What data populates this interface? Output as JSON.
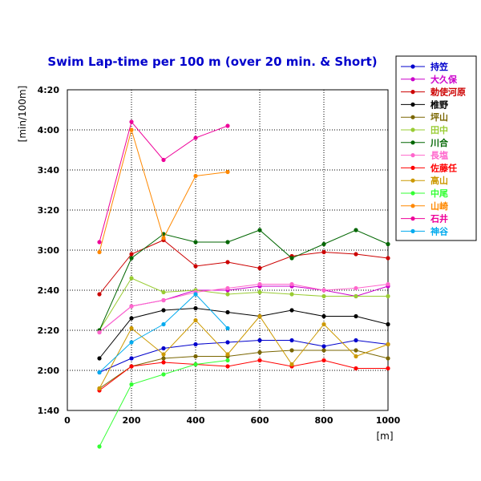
{
  "chart_data": {
    "type": "line",
    "title": "Swim Lap-time per 100 m (over 20 min. & Short)",
    "xlabel": "[m]",
    "ylabel": "[min/100m]",
    "xlim": [
      0,
      1000
    ],
    "ylim": [
      100,
      260
    ],
    "x_ticks": [
      0,
      200,
      400,
      600,
      800,
      1000
    ],
    "y_ticks": [
      100,
      120,
      140,
      160,
      180,
      200,
      220,
      240,
      260
    ],
    "y_tick_labels": [
      "1:40",
      "2:00",
      "2:20",
      "2:40",
      "3:00",
      "3:20",
      "3:40",
      "4:00",
      "4:20"
    ],
    "grid": true,
    "legend_position": "right",
    "series": [
      {
        "name": "持笠",
        "color": "#0000cc",
        "x": [
          100,
          200,
          300,
          400,
          500,
          600,
          700,
          800,
          900,
          1000
        ],
        "y": [
          119,
          126,
          131,
          133,
          134,
          135,
          135,
          132,
          135,
          133
        ]
      },
      {
        "name": "大久保",
        "color": "#cc00cc",
        "x": [
          100,
          200,
          300,
          400,
          500,
          600,
          700,
          800,
          900,
          1000
        ],
        "y": [
          139,
          152,
          155,
          160,
          160,
          162,
          162,
          160,
          157,
          162
        ]
      },
      {
        "name": "勅使河原",
        "color": "#cc0000",
        "x": [
          100,
          200,
          300,
          400,
          500,
          600,
          700,
          800,
          900,
          1000
        ],
        "y": [
          158,
          178,
          185,
          172,
          174,
          171,
          177,
          179,
          178,
          176
        ]
      },
      {
        "name": "椎野",
        "color": "#000000",
        "x": [
          100,
          200,
          300,
          400,
          500,
          600,
          700,
          800,
          900,
          1000
        ],
        "y": [
          126,
          146,
          150,
          151,
          149,
          147,
          150,
          147,
          147,
          143
        ]
      },
      {
        "name": "坪山",
        "color": "#7a6600",
        "x": [
          100,
          200,
          300,
          400,
          500,
          600,
          700,
          800,
          900,
          1000
        ],
        "y": [
          111,
          122,
          126,
          127,
          127,
          129,
          130,
          130,
          130,
          126
        ]
      },
      {
        "name": "田中",
        "color": "#99cc33",
        "x": [
          100,
          200,
          300,
          400,
          500,
          600,
          700,
          800,
          900,
          1000
        ],
        "y": [
          140,
          166,
          159,
          160,
          158,
          159,
          158,
          157,
          157,
          157
        ]
      },
      {
        "name": "川合",
        "color": "#006600",
        "x": [
          100,
          200,
          300,
          400,
          500,
          600,
          700,
          800,
          900,
          1000
        ],
        "y": [
          140,
          176,
          188,
          184,
          184,
          190,
          176,
          183,
          190,
          183
        ]
      },
      {
        "name": "長塩",
        "color": "#ff66cc",
        "x": [
          100,
          200,
          300,
          400,
          500,
          600,
          700,
          800,
          900,
          1000
        ],
        "y": [
          139,
          152,
          155,
          159,
          161,
          163,
          163,
          160,
          161,
          163
        ]
      },
      {
        "name": "佐藤任",
        "color": "#ff0000",
        "x": [
          100,
          200,
          300,
          400,
          500,
          600,
          700,
          800,
          900,
          1000
        ],
        "y": [
          110,
          122,
          124,
          123,
          122,
          125,
          122,
          125,
          121,
          121
        ]
      },
      {
        "name": "高山",
        "color": "#cc9900",
        "x": [
          100,
          200,
          300,
          400,
          500,
          600,
          700,
          800,
          900,
          1000
        ],
        "y": [
          111,
          141,
          128,
          145,
          128,
          147,
          123,
          143,
          127,
          133
        ]
      },
      {
        "name": "中尾",
        "color": "#33ff33",
        "x": [
          100,
          200,
          300,
          400,
          500
        ],
        "y": [
          82,
          113,
          118,
          123,
          125
        ]
      },
      {
        "name": "山崎",
        "color": "#ff8800",
        "x": [
          100,
          200,
          300,
          400,
          500
        ],
        "y": [
          179,
          240,
          186,
          217,
          219
        ]
      },
      {
        "name": "石井",
        "color": "#ee0099",
        "x": [
          100,
          200,
          300,
          400,
          500
        ],
        "y": [
          184,
          244,
          225,
          236,
          242
        ]
      },
      {
        "name": "神谷",
        "color": "#00aaee",
        "x": [
          100,
          200,
          300,
          400,
          500
        ],
        "y": [
          119,
          134,
          143,
          158,
          141
        ]
      }
    ]
  }
}
